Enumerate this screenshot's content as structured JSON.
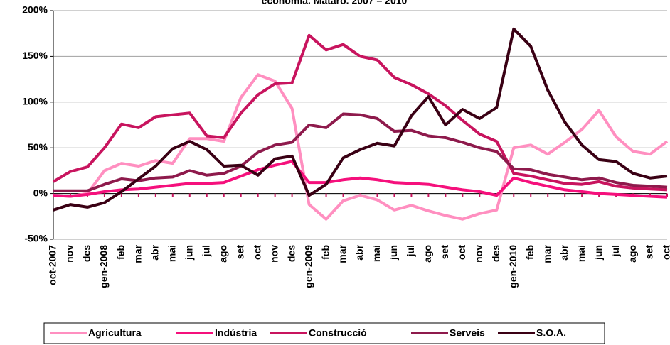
{
  "chart_data": {
    "type": "line",
    "title": "economia. Mataró. 2007 – 2010",
    "categories": [
      "oct-2007",
      "nov",
      "des",
      "gen-2008",
      "feb",
      "mar",
      "abr",
      "mai",
      "jun",
      "jul",
      "ago",
      "set",
      "oct",
      "nov",
      "des",
      "gen-2009",
      "feb",
      "mar",
      "abr",
      "mai",
      "jun",
      "jul",
      "ago",
      "set",
      "oct",
      "nov",
      "des",
      "gen-2010",
      "feb",
      "mar",
      "abr",
      "mai",
      "jun",
      "jul",
      "ago",
      "set",
      "oct"
    ],
    "series": [
      {
        "name": "Agricultura",
        "color": "#ff8fc0",
        "values": [
          -2,
          -3,
          0,
          25,
          33,
          30,
          36,
          33,
          60,
          60,
          57,
          105,
          130,
          123,
          93,
          -12,
          -28,
          -8,
          -2,
          -7,
          -18,
          -13,
          -19,
          -24,
          -28,
          -22,
          -18,
          50,
          53,
          43,
          56,
          70,
          91,
          62,
          46,
          43,
          57
        ]
      },
      {
        "name": "Indústria",
        "color": "#f5107c",
        "values": [
          -2,
          -3,
          -1,
          2,
          4,
          5,
          7,
          9,
          11,
          11,
          12,
          19,
          26,
          31,
          35,
          12,
          12,
          15,
          17,
          15,
          12,
          11,
          10,
          7,
          4,
          2,
          -2,
          17,
          12,
          8,
          4,
          2,
          0,
          -1,
          -2,
          -3,
          -4
        ]
      },
      {
        "name": "Construcció",
        "color": "#c8145e",
        "values": [
          13,
          24,
          29,
          50,
          76,
          72,
          84,
          86,
          88,
          63,
          61,
          88,
          108,
          120,
          121,
          173,
          157,
          163,
          150,
          146,
          127,
          119,
          109,
          96,
          80,
          65,
          57,
          22,
          19,
          15,
          11,
          10,
          13,
          8,
          6,
          5,
          4
        ]
      },
      {
        "name": "Serveis",
        "color": "#8e1a4c",
        "values": [
          3,
          3,
          3,
          10,
          16,
          14,
          17,
          18,
          25,
          20,
          22,
          30,
          45,
          53,
          56,
          75,
          72,
          87,
          86,
          82,
          68,
          69,
          63,
          61,
          56,
          50,
          46,
          27,
          26,
          21,
          18,
          15,
          17,
          12,
          9,
          8,
          7
        ]
      },
      {
        "name": "S.O.A.",
        "color": "#3a0014",
        "values": [
          -18,
          -12,
          -15,
          -10,
          2,
          16,
          30,
          49,
          57,
          48,
          30,
          31,
          20,
          38,
          41,
          -2,
          10,
          39,
          48,
          55,
          52,
          85,
          106,
          75,
          92,
          82,
          94,
          180,
          161,
          113,
          78,
          53,
          37,
          35,
          22,
          17,
          19
        ]
      }
    ],
    "ylim": [
      -50,
      200
    ],
    "yticks": [
      {
        "value": -50,
        "label": "-50%"
      },
      {
        "value": 0,
        "label": "0%"
      },
      {
        "value": 50,
        "label": "50%"
      },
      {
        "value": 100,
        "label": "100%"
      },
      {
        "value": 150,
        "label": "150%"
      },
      {
        "value": 200,
        "label": "200%"
      }
    ],
    "grid": true,
    "legend": "bottom"
  }
}
